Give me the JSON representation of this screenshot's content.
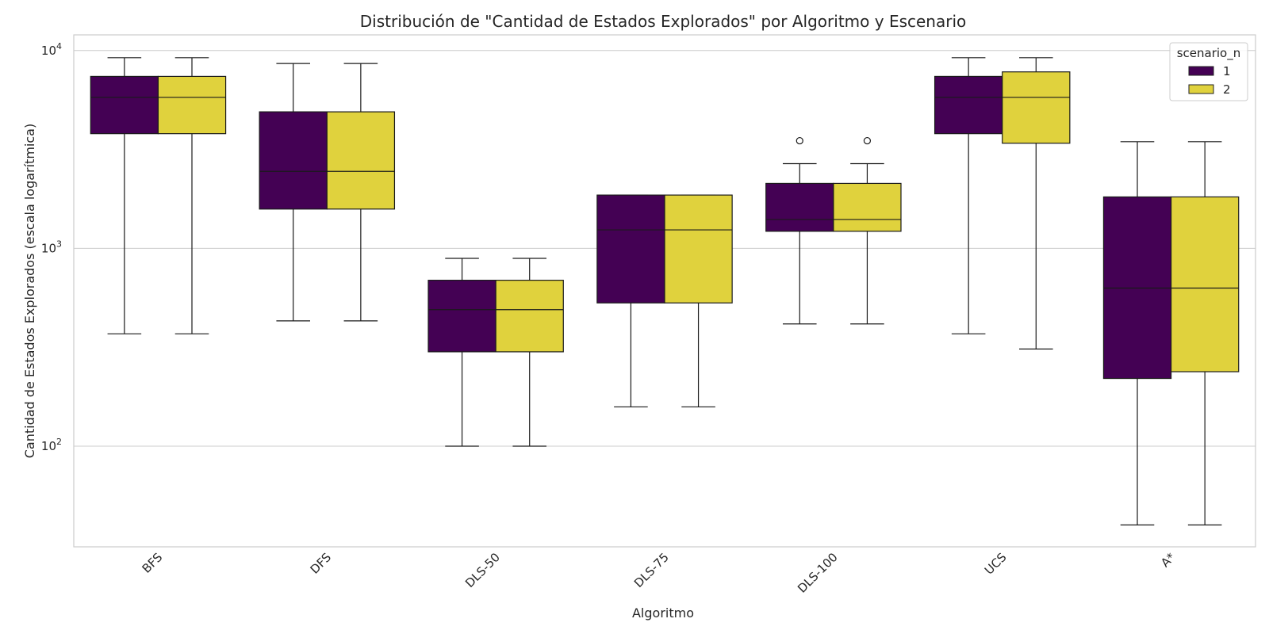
{
  "chart_data": {
    "type": "boxplot",
    "title": "Distribución de \"Cantidad de Estados Explorados\" por Algoritmo y Escenario",
    "xlabel": "Algoritmo",
    "ylabel": "Cantidad de Estados Explorados (escala logarítmica)",
    "y_scale": "log",
    "ylim": [
      31,
      12000
    ],
    "y_ticks": [
      {
        "value": 100,
        "base": "10",
        "exp": "2"
      },
      {
        "value": 1000,
        "base": "10",
        "exp": "3"
      },
      {
        "value": 10000,
        "base": "10",
        "exp": "4"
      }
    ],
    "grid": "horizontal",
    "categories": [
      "BFS",
      "DFS",
      "DLS-50",
      "DLS-75",
      "DLS-100",
      "UCS",
      "A*"
    ],
    "legend": {
      "title": "scenario_n",
      "placement": "top-right"
    },
    "series": [
      {
        "name": "1",
        "color": "#440154",
        "boxes": [
          {
            "min": 370,
            "q1": 3800,
            "median": 5800,
            "q3": 7400,
            "max": 9200,
            "outliers": []
          },
          {
            "min": 430,
            "q1": 1580,
            "median": 2450,
            "q3": 4900,
            "max": 8600,
            "outliers": []
          },
          {
            "min": 100,
            "q1": 300,
            "median": 490,
            "q3": 690,
            "max": 890,
            "outliers": []
          },
          {
            "min": 158,
            "q1": 530,
            "median": 1240,
            "q3": 1860,
            "max": 1860,
            "outliers": []
          },
          {
            "min": 415,
            "q1": 1220,
            "median": 1400,
            "q3": 2130,
            "max": 2680,
            "outliers": [
              3500
            ]
          },
          {
            "min": 370,
            "q1": 3800,
            "median": 5800,
            "q3": 7400,
            "max": 9200,
            "outliers": []
          },
          {
            "min": 40,
            "q1": 220,
            "median": 630,
            "q3": 1820,
            "max": 3460,
            "outliers": []
          }
        ]
      },
      {
        "name": "2",
        "color": "#e0d23d",
        "boxes": [
          {
            "min": 370,
            "q1": 3800,
            "median": 5800,
            "q3": 7400,
            "max": 9200,
            "outliers": []
          },
          {
            "min": 430,
            "q1": 1580,
            "median": 2450,
            "q3": 4900,
            "max": 8600,
            "outliers": []
          },
          {
            "min": 100,
            "q1": 300,
            "median": 490,
            "q3": 690,
            "max": 890,
            "outliers": []
          },
          {
            "min": 158,
            "q1": 530,
            "median": 1240,
            "q3": 1860,
            "max": 1860,
            "outliers": []
          },
          {
            "min": 415,
            "q1": 1220,
            "median": 1400,
            "q3": 2130,
            "max": 2680,
            "outliers": [
              3500
            ]
          },
          {
            "min": 310,
            "q1": 3400,
            "median": 5800,
            "q3": 7800,
            "max": 9200,
            "outliers": []
          },
          {
            "min": 40,
            "q1": 238,
            "median": 630,
            "q3": 1820,
            "max": 3460,
            "outliers": []
          }
        ]
      }
    ]
  }
}
